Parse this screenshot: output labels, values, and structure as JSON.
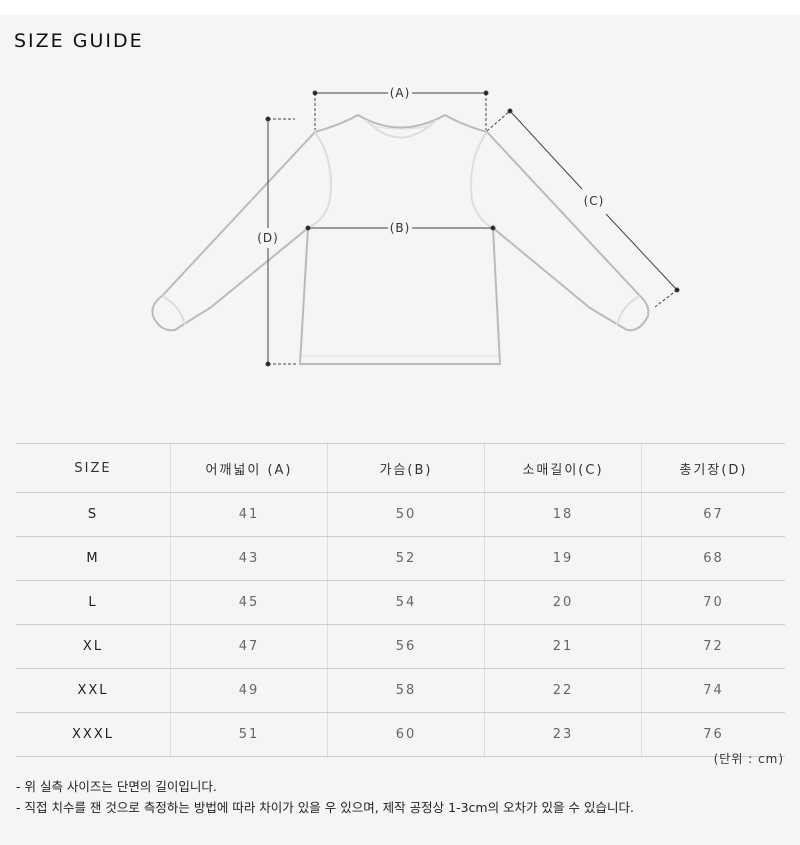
{
  "title": "SIZE GUIDE",
  "diagram": {
    "labels": {
      "a": "(A)",
      "b": "(B)",
      "c": "(C)",
      "d": "(D)"
    }
  },
  "table": {
    "headers": [
      "SIZE",
      "어깨넓이 (A)",
      "가슴(B)",
      "소매길이(C)",
      "총기장(D)"
    ],
    "rows": [
      [
        "S",
        "41",
        "50",
        "18",
        "67"
      ],
      [
        "M",
        "43",
        "52",
        "19",
        "68"
      ],
      [
        "L",
        "45",
        "54",
        "20",
        "70"
      ],
      [
        "XL",
        "47",
        "56",
        "21",
        "72"
      ],
      [
        "XXL",
        "49",
        "58",
        "22",
        "74"
      ],
      [
        "XXXL",
        "51",
        "60",
        "23",
        "76"
      ]
    ]
  },
  "unit": "(단위 : cm)",
  "notes": [
    "- 위 실측 사이즈는 단면의 길이입니다.",
    "- 직접 치수를 잰 것으로 측정하는 방법에 따라 차이가 있을 우 있으며, 제작 공정상 1-3cm의 오차가 있을 수 있습니다."
  ]
}
